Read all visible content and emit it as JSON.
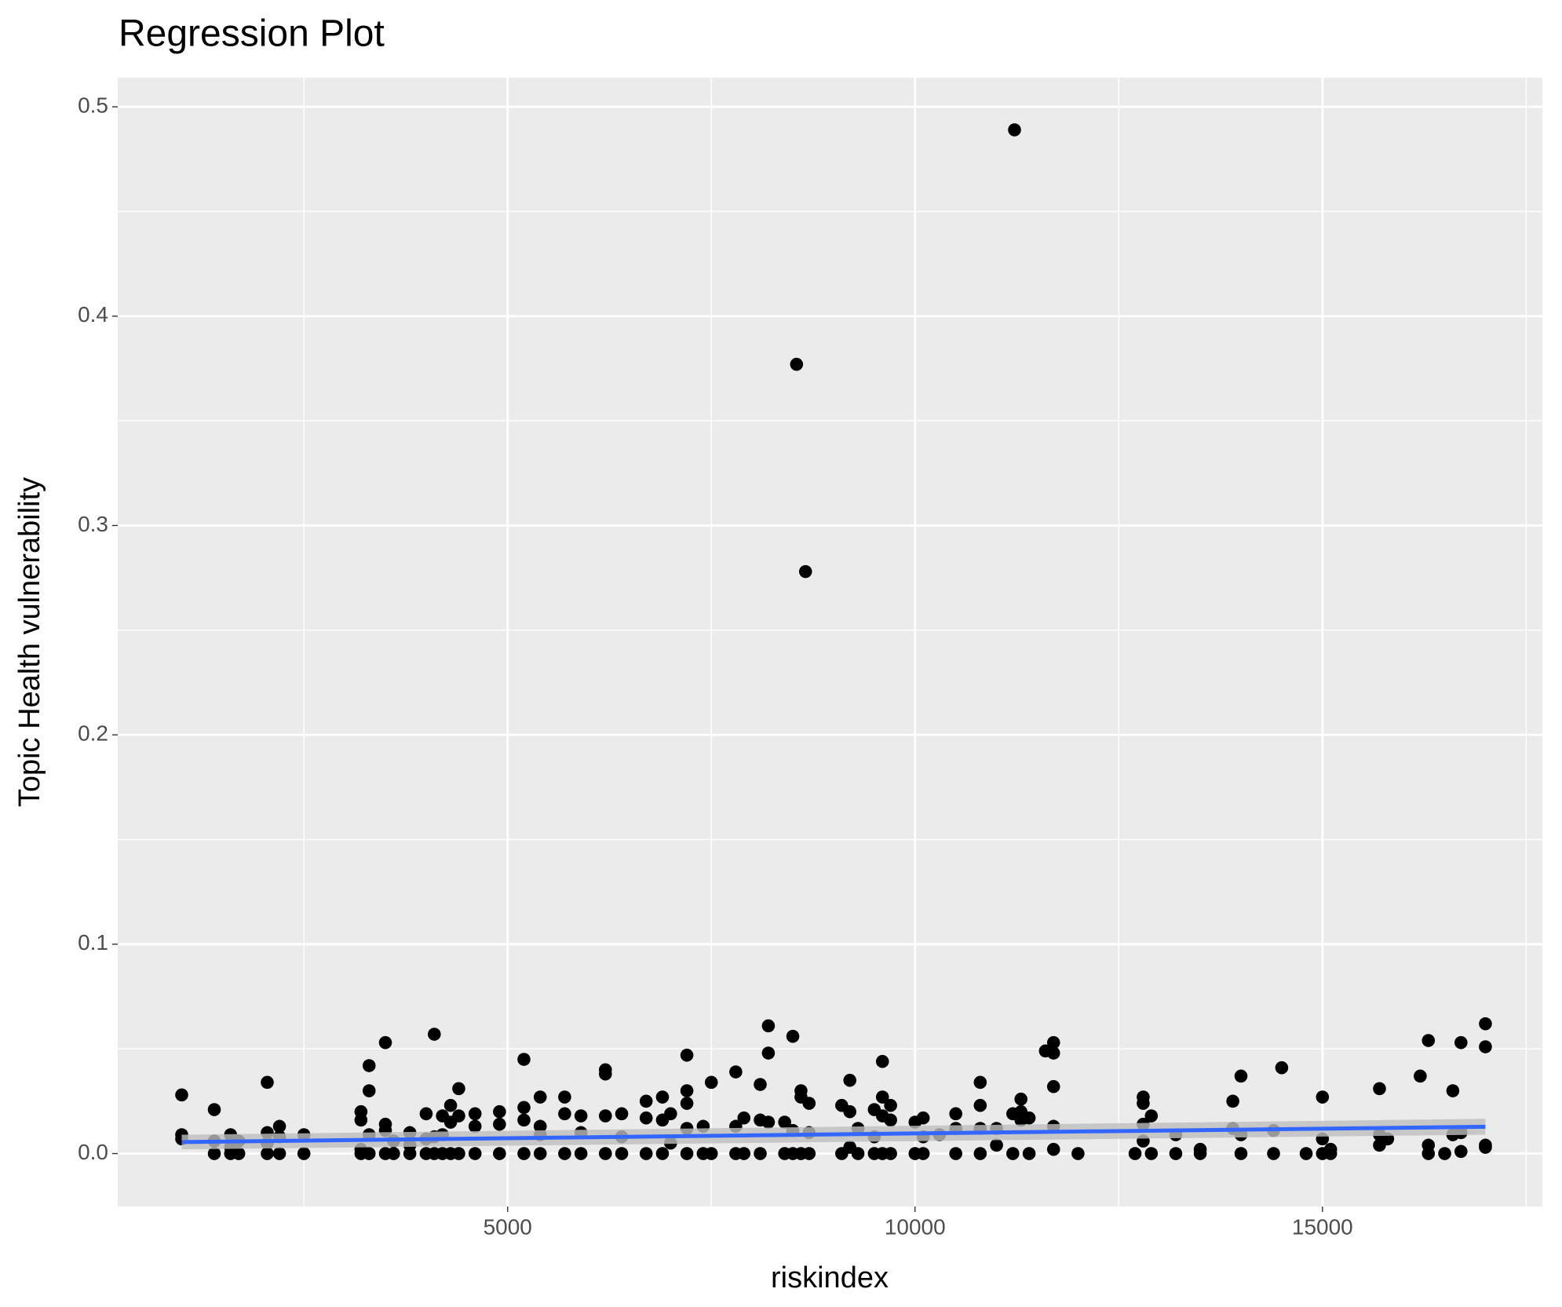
{
  "chart_data": {
    "type": "scatter",
    "title": "Regression Plot",
    "xlabel": "riskindex",
    "ylabel": "Topic Health vulnerability",
    "xlim": [
      215,
      17699
    ],
    "ylim": [
      -0.0253,
      0.5139
    ],
    "xticks": [
      5000,
      10000,
      15000
    ],
    "yticks": [
      {
        "value": 0,
        "label": "0.0"
      },
      0.1,
      0.2,
      0.3,
      0.4,
      0.5
    ],
    "grid": true,
    "series": [
      {
        "color": "#000000",
        "x": [
          1000,
          1000,
          1000,
          1400,
          1400,
          1400,
          1600,
          1600,
          1600,
          1700,
          1700,
          2050,
          2050,
          2050,
          2050,
          2200,
          2200,
          2200,
          2500,
          2500,
          3200,
          3200,
          3200,
          3200,
          3300,
          3300,
          3300,
          3300,
          3500,
          3500,
          3500,
          3500,
          3600,
          3600,
          3800,
          3800,
          3800,
          4000,
          4000,
          4000,
          4100,
          4100,
          4100,
          4200,
          4200,
          4200,
          4300,
          4300,
          4300,
          4400,
          4400,
          4400,
          4600,
          4600,
          4600,
          4900,
          4900,
          4900,
          5200,
          5200,
          5200,
          5200,
          5400,
          5400,
          5400,
          5400,
          5700,
          5700,
          5700,
          5900,
          5900,
          5900,
          6200,
          6200,
          6200,
          6200,
          6400,
          6400,
          6400,
          6700,
          6700,
          6700,
          6900,
          6900,
          6900,
          7000,
          7000,
          7200,
          7200,
          7200,
          7200,
          7200,
          7400,
          7400,
          7500,
          7500,
          7800,
          7800,
          7800,
          7900,
          7900,
          8100,
          8100,
          8100,
          8200,
          8200,
          8200,
          8400,
          8400,
          8500,
          8500,
          8500,
          8546,
          8600,
          8600,
          8600,
          8656,
          8700,
          8700,
          8700,
          9100,
          9100,
          9200,
          9200,
          9200,
          9300,
          9300,
          9500,
          9500,
          9500,
          9600,
          9600,
          9600,
          9600,
          9700,
          9700,
          9700,
          10000,
          10000,
          10100,
          10100,
          10100,
          10300,
          10500,
          10500,
          10500,
          10800,
          10800,
          10800,
          10800,
          11000,
          11000,
          11200,
          11200,
          11221,
          11300,
          11300,
          11300,
          11400,
          11400,
          11600,
          11700,
          11700,
          11700,
          11700,
          11700,
          12000,
          12700,
          12800,
          12800,
          12800,
          12800,
          12900,
          12900,
          13200,
          13200,
          13500,
          13500,
          13900,
          13900,
          14000,
          14000,
          14000,
          14400,
          14400,
          14500,
          14800,
          15000,
          15000,
          15000,
          15100,
          15100,
          15700,
          15700,
          15700,
          15800,
          16200,
          16300,
          16300,
          16300,
          16500,
          16600,
          16600,
          16700,
          16700,
          16700,
          17000,
          17000,
          17000,
          17000
        ],
        "values": [
          0.028,
          0.009,
          0.007,
          0.021,
          0.006,
          0.0,
          0.009,
          0.003,
          0.0,
          0.0,
          0.006,
          0.034,
          0.01,
          0.0,
          0.005,
          0.013,
          0.008,
          0.0,
          0.009,
          0.0,
          0.02,
          0.016,
          0.002,
          0.0,
          0.042,
          0.03,
          0.009,
          0.0,
          0.053,
          0.014,
          0.011,
          0.0,
          0.006,
          0.0,
          0.01,
          0.004,
          0.0,
          0.019,
          0.007,
          0.0,
          0.057,
          0.008,
          0.0,
          0.018,
          0.009,
          0.0,
          0.023,
          0.015,
          0.0,
          0.031,
          0.018,
          0.0,
          0.019,
          0.013,
          0.0,
          0.02,
          0.014,
          0.0,
          0.045,
          0.022,
          0.016,
          0.0,
          0.027,
          0.013,
          0.009,
          0.0,
          0.027,
          0.019,
          0.0,
          0.018,
          0.01,
          0.0,
          0.04,
          0.038,
          0.018,
          0.0,
          0.019,
          0.008,
          0.0,
          0.025,
          0.017,
          0.0,
          0.027,
          0.016,
          0.0,
          0.019,
          0.005,
          0.047,
          0.03,
          0.024,
          0.012,
          0.0,
          0.013,
          0.0,
          0.034,
          0.0,
          0.039,
          0.013,
          0.0,
          0.017,
          0.0,
          0.033,
          0.016,
          0.0,
          0.061,
          0.048,
          0.015,
          0.015,
          0.0,
          0.056,
          0.011,
          0.0,
          0.377,
          0.03,
          0.027,
          0.0,
          0.278,
          0.024,
          0.01,
          0.0,
          0.023,
          0.0,
          0.035,
          0.02,
          0.003,
          0.012,
          0.0,
          0.021,
          0.008,
          0.0,
          0.044,
          0.027,
          0.018,
          0.0,
          0.023,
          0.016,
          0.0,
          0.015,
          0.0,
          0.017,
          0.008,
          0.0,
          0.009,
          0.019,
          0.012,
          0.0,
          0.034,
          0.023,
          0.012,
          0.0,
          0.012,
          0.004,
          0.019,
          0.0,
          0.489,
          0.026,
          0.02,
          0.016,
          0.017,
          0.0,
          0.049,
          0.053,
          0.048,
          0.032,
          0.013,
          0.002,
          0.0,
          0.0,
          0.027,
          0.024,
          0.014,
          0.006,
          0.018,
          0.0,
          0.009,
          0.0,
          0.002,
          0.0,
          0.025,
          0.012,
          0.037,
          0.009,
          0.0,
          0.011,
          0.0,
          0.041,
          0.0,
          0.027,
          0.007,
          0.0,
          0.002,
          0.0,
          0.031,
          0.009,
          0.004,
          0.007,
          0.037,
          0.054,
          0.004,
          0.0,
          0.0,
          0.03,
          0.009,
          0.053,
          0.01,
          0.001,
          0.062,
          0.051,
          0.004,
          0.003
        ]
      },
      {
        "color": "#3366ff",
        "band_color": "#bebebe",
        "x": [
          1000,
          17000
        ],
        "values": [
          0.0055,
          0.0128
        ],
        "lower": [
          0.002,
          0.009
        ],
        "upper": [
          0.009,
          0.0166
        ]
      }
    ]
  }
}
